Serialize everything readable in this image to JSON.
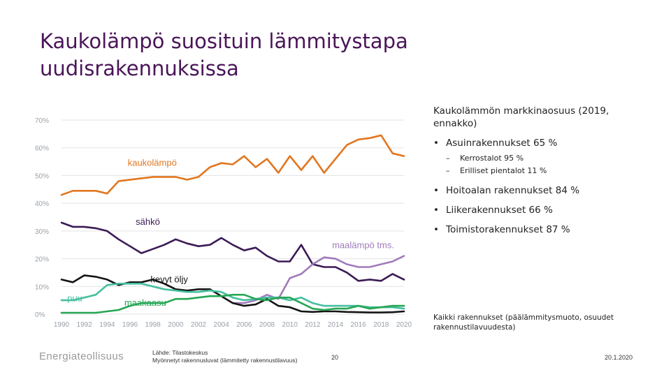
{
  "slide": {
    "title_line1": "Kaukolämpö suosituin lämmitystapa",
    "title_line2": "uudisrakennuksissa",
    "market_share_title": "Kaukolämmön markkinaosuus (2019, ennakko)",
    "bullets": [
      {
        "text": "Asuinrakennukset 65 %",
        "subs": [
          "Kerrostalot 95 %",
          "Erilliset pientalot 11 %"
        ]
      },
      {
        "text": "Hoitoalan rakennukset 84 %",
        "subs": []
      },
      {
        "text": "Liikerakennukset 66 %",
        "subs": []
      },
      {
        "text": "Toimistorakennukset 87 %",
        "subs": []
      }
    ],
    "footnote": "Kaikki rakennukset (päälämmitysmuoto, osuudet rakennustilavuudesta)",
    "logo_text": "Energiateollisuus",
    "source_line1": "Lähde: Tilastokeskus",
    "source_line2": "Myönnetyt rakennusluvat (lämmitetty rakennustilavuus)",
    "page_number": "20",
    "date": "20.1.2020"
  },
  "chart_data": {
    "type": "line",
    "title": "",
    "xlabel": "",
    "ylabel": "",
    "xlim": [
      1990,
      2020
    ],
    "ylim": [
      0,
      70
    ],
    "x_ticks": [
      "1990",
      "1992",
      "1994",
      "1996",
      "1998",
      "2000",
      "2002",
      "2004",
      "2006",
      "2008",
      "2010",
      "2012",
      "2014",
      "2016",
      "2018",
      "2020"
    ],
    "y_ticks": [
      "0%",
      "10%",
      "20%",
      "30%",
      "40%",
      "50%",
      "60%",
      "70%"
    ],
    "colors": {
      "axis_text": "#9aa0a6",
      "grid": "#e3e3e3"
    },
    "series": [
      {
        "name": "kaukolämpö",
        "color": "#e2761f",
        "label_x": 1995.8,
        "label_y": 53.5,
        "x": [
          1990,
          1991,
          1992,
          1993,
          1994,
          1995,
          1996,
          1997,
          1998,
          1999,
          2000,
          2001,
          2002,
          2003,
          2004,
          2005,
          2006,
          2007,
          2008,
          2009,
          2010,
          2011,
          2012,
          2013,
          2014,
          2015,
          2016,
          2017,
          2018,
          2019,
          2020
        ],
        "y": [
          43,
          44.5,
          44.5,
          44.5,
          43.5,
          48,
          48.5,
          49,
          49.5,
          49.5,
          49.5,
          48.5,
          49.5,
          53,
          54.5,
          54,
          57,
          53,
          56,
          51,
          57,
          52,
          57,
          51,
          56,
          61,
          63,
          63.5,
          64.5,
          58,
          57
        ]
      },
      {
        "name": "sähkö",
        "color": "#3b1a55",
        "label_x": 1996.5,
        "label_y": 32.2,
        "x": [
          1990,
          1991,
          1992,
          1993,
          1994,
          1995,
          1996,
          1997,
          1998,
          1999,
          2000,
          2001,
          2002,
          2003,
          2004,
          2005,
          2006,
          2007,
          2008,
          2009,
          2010,
          2011,
          2012,
          2013,
          2014,
          2015,
          2016,
          2017,
          2018,
          2019,
          2020
        ],
        "y": [
          33,
          31.5,
          31.5,
          31,
          30,
          27,
          24.5,
          22,
          23.5,
          25,
          27,
          25.5,
          24.5,
          25,
          27.5,
          25,
          23,
          24,
          21,
          19,
          19,
          25,
          18,
          17,
          17,
          15,
          12,
          12.5,
          12,
          14.5,
          12.5
        ]
      },
      {
        "name": "maalämpö tms.",
        "color": "#a07bbb",
        "label_x": 2013.7,
        "label_y": 23.8,
        "x": [
          2005,
          2006,
          2007,
          2008,
          2009,
          2010,
          2011,
          2012,
          2013,
          2014,
          2015,
          2016,
          2017,
          2018,
          2019,
          2020
        ],
        "y": [
          4,
          4,
          5,
          7,
          5.5,
          13,
          14.5,
          18,
          20.5,
          20,
          18,
          17,
          17,
          18,
          19,
          21
        ]
      },
      {
        "name": "kevyt öljy",
        "color": "#141414",
        "label_x": 1997.8,
        "label_y": 11.5,
        "x": [
          1990,
          1991,
          1992,
          1993,
          1994,
          1995,
          1996,
          1997,
          1998,
          1999,
          2000,
          2001,
          2002,
          2003,
          2004,
          2005,
          2006,
          2007,
          2008,
          2009,
          2010,
          2011,
          2012,
          2013,
          2014,
          2015,
          2016,
          2017,
          2018,
          2019,
          2020
        ],
        "y": [
          12.5,
          11.5,
          14,
          13.5,
          12.5,
          10.5,
          11.5,
          11.5,
          12.5,
          11,
          9,
          8.5,
          9,
          9,
          6.5,
          4,
          3,
          3.5,
          5.5,
          3,
          2.5,
          1,
          0.8,
          1,
          1,
          0.8,
          0.7,
          0.6,
          0.6,
          0.7,
          1
        ]
      },
      {
        "name": "puu",
        "color": "#46bfa0",
        "label_x": 1990.5,
        "label_y": 4.6,
        "x": [
          1990,
          1991,
          1992,
          1993,
          1994,
          1995,
          1996,
          1997,
          1998,
          1999,
          2000,
          2001,
          2002,
          2003,
          2004,
          2005,
          2006,
          2007,
          2008,
          2009,
          2010,
          2011,
          2012,
          2013,
          2014,
          2015,
          2016,
          2017,
          2018,
          2019,
          2020
        ],
        "y": [
          5,
          5,
          6,
          7,
          10.5,
          11,
          11,
          11,
          10,
          9,
          8.5,
          8,
          8,
          8.5,
          8,
          6,
          5,
          5.5,
          6,
          6,
          5,
          6,
          4,
          3,
          3,
          3,
          3,
          2.5,
          2.5,
          2.5,
          2
        ]
      },
      {
        "name": "maakaasu",
        "color": "#26a653",
        "label_x": 1995.5,
        "label_y": 3.0,
        "x": [
          1990,
          1991,
          1992,
          1993,
          1994,
          1995,
          1996,
          1997,
          1998,
          1999,
          2000,
          2001,
          2002,
          2003,
          2004,
          2005,
          2006,
          2007,
          2008,
          2009,
          2010,
          2011,
          2012,
          2013,
          2014,
          2015,
          2016,
          2017,
          2018,
          2019,
          2020
        ],
        "y": [
          0.5,
          0.5,
          0.5,
          0.5,
          1,
          1.5,
          3,
          4,
          4,
          4,
          5.5,
          5.5,
          6,
          6.5,
          6.5,
          7,
          7,
          5.5,
          5,
          6,
          6,
          4,
          2,
          1.5,
          2,
          2,
          3,
          2,
          2.5,
          3,
          3
        ]
      }
    ]
  }
}
